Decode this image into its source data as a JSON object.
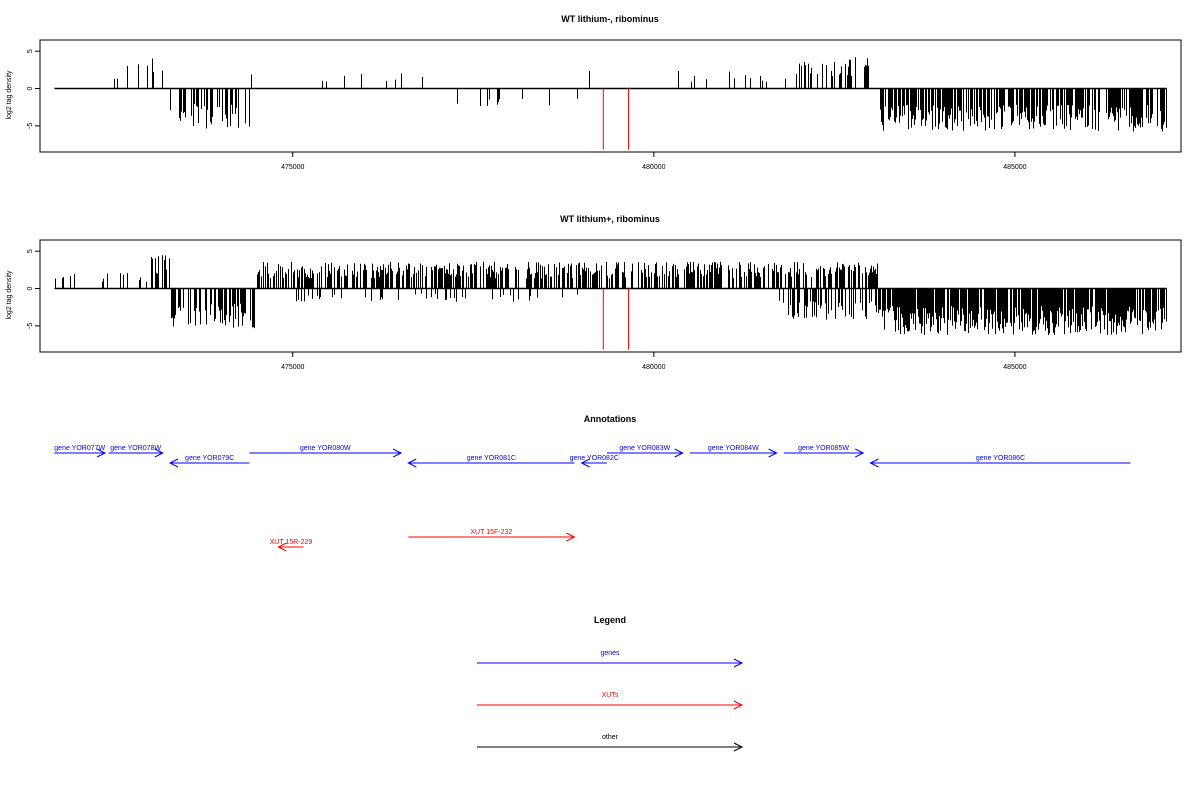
{
  "chart_data": [
    {
      "type": "bar",
      "title": "WT lithium-, ribominus",
      "ylabel": "log2 tag density",
      "xlabel": "",
      "xlim": [
        471500,
        487300
      ],
      "ylim": [
        -8.5,
        6.5
      ],
      "yticks": [
        5,
        0,
        -5
      ],
      "xticks": [
        475000,
        480000,
        485000
      ],
      "baseline": 0,
      "highlight_color": "#ff0000",
      "highlight_bars": [
        {
          "x": 479300,
          "value": -8.2
        },
        {
          "x": 479650,
          "value": -8.2
        }
      ],
      "profile": [
        {
          "x": [
            471700,
            472600
          ],
          "value": 2,
          "density": 0.05
        },
        {
          "x": [
            472600,
            473300
          ],
          "value": 3.5,
          "density": 0.2
        },
        {
          "x": [
            473300,
            474400
          ],
          "value": -4.5,
          "density": 0.45
        },
        {
          "x": [
            474400,
            475300
          ],
          "value": 2,
          "density": 0.04
        },
        {
          "x": [
            475300,
            477000
          ],
          "value": 1.8,
          "density": 0.05
        },
        {
          "x": [
            477000,
            479000
          ],
          "value": -2,
          "density": 0.06
        },
        {
          "x": [
            479000,
            480700
          ],
          "value": 2,
          "density": 0.05
        },
        {
          "x": [
            480700,
            481900
          ],
          "value": 2,
          "density": 0.05
        },
        {
          "x": [
            481900,
            483100
          ],
          "value": 3.5,
          "density": 0.3
        },
        {
          "x": [
            483100,
            487100
          ],
          "value": -4.8,
          "density": 0.7
        }
      ]
    },
    {
      "type": "bar",
      "title": "WT lithium+, ribominus",
      "ylabel": "log2 tag density",
      "xlabel": "",
      "xlim": [
        471500,
        487300
      ],
      "ylim": [
        -8.5,
        6.5
      ],
      "yticks": [
        5,
        0,
        -5
      ],
      "xticks": [
        475000,
        480000,
        485000
      ],
      "baseline": 0,
      "highlight_color": "#ff0000",
      "highlight_bars": [
        {
          "x": 479300,
          "value": -8.2
        },
        {
          "x": 479650,
          "value": -8.2
        }
      ],
      "profile": [
        {
          "x": [
            471700,
            473000
          ],
          "value": 2,
          "density": 0.2
        },
        {
          "x": [
            473000,
            473300
          ],
          "value": 4,
          "density": 0.35
        },
        {
          "x": [
            473300,
            474500
          ],
          "value": -4.5,
          "density": 0.6
        },
        {
          "x": [
            474500,
            483100
          ],
          "value": 3,
          "density": 0.6
        },
        {
          "x": [
            475000,
            479000
          ],
          "value": -1.5,
          "density": 0.15
        },
        {
          "x": [
            481700,
            483100
          ],
          "value": -3.5,
          "density": 0.35
        },
        {
          "x": [
            483100,
            487100
          ],
          "value": -5.2,
          "density": 0.9
        }
      ]
    },
    {
      "type": "annotation_track",
      "title": "Annotations",
      "features": [
        {
          "label": "gene YOR077W",
          "start": 471700,
          "end": 472400,
          "strand": "+",
          "row": 0,
          "class": "gene"
        },
        {
          "label": "gene YOR078W",
          "start": 472450,
          "end": 473200,
          "strand": "+",
          "row": 0,
          "class": "gene"
        },
        {
          "label": "gene YOR079C",
          "start": 473300,
          "end": 474400,
          "strand": "-",
          "row": 1,
          "class": "gene"
        },
        {
          "label": "gene YOR080W",
          "start": 474400,
          "end": 476500,
          "strand": "+",
          "row": 0,
          "class": "gene"
        },
        {
          "label": "gene YOR081C",
          "start": 476600,
          "end": 478900,
          "strand": "-",
          "row": 1,
          "class": "gene"
        },
        {
          "label": "gene YOR082C",
          "start": 479000,
          "end": 479350,
          "strand": "-",
          "row": 1,
          "class": "gene"
        },
        {
          "label": "gene YOR083W",
          "start": 479350,
          "end": 480400,
          "strand": "+",
          "row": 0,
          "class": "gene"
        },
        {
          "label": "gene YOR084W",
          "start": 480500,
          "end": 481700,
          "strand": "+",
          "row": 0,
          "class": "gene"
        },
        {
          "label": "gene YOR085W",
          "start": 481800,
          "end": 482900,
          "strand": "+",
          "row": 0,
          "class": "gene"
        },
        {
          "label": "gene YOR086C",
          "start": 483000,
          "end": 486600,
          "strand": "-",
          "row": 1,
          "class": "gene"
        },
        {
          "label": "XUT 15F-232",
          "start": 476600,
          "end": 478900,
          "strand": "+",
          "row": 2,
          "class": "xut"
        },
        {
          "label": "XUT 15R-229",
          "start": 474800,
          "end": 475150,
          "strand": "-",
          "row": 3,
          "class": "xut"
        }
      ]
    }
  ],
  "legend": {
    "title": "Legend",
    "items": [
      {
        "label": "genes",
        "color": "#0000ff"
      },
      {
        "label": "XUTs",
        "color": "#ff0000"
      },
      {
        "label": "other",
        "color": "#000000"
      }
    ]
  },
  "colors": {
    "gene": "#0000ff",
    "xut": "#ff0000",
    "bars": "#000000"
  }
}
